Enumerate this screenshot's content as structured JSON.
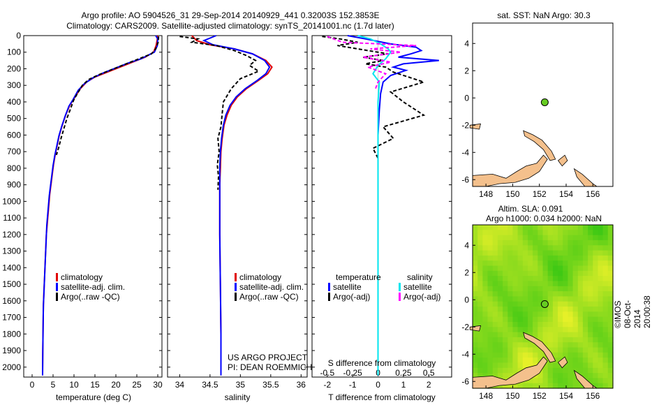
{
  "header": {
    "title_line1": "Argo profile: AO 5904526_31 29-Sep-2014 20140929_441 0.32003S 152.3853E",
    "title_line2": "Climatology: CARS2009. Satellite-adjusted climatology: synTS_20141001.nc (1.7d later)"
  },
  "colors": {
    "climatology": "#e00000",
    "satellite": "#0000ff",
    "argo": "#000000",
    "sal_satellite": "#00e5ee",
    "sal_argo": "#ff00ff",
    "land": "#f4c08c",
    "float": "#66cc22"
  },
  "legend": {
    "climatology": "climatology",
    "satellite_adj": "satellite-adj. clim.",
    "argo_raw": "Argo(..raw -QC)",
    "temperature_header": "temperature",
    "salinity_header": "salinity",
    "satellite": "satellite",
    "argo_adj": "Argo(-adj)"
  },
  "project": {
    "line1": "US ARGO PROJECT",
    "line2": "PI: DEAN ROEMMICH"
  },
  "map_top": {
    "title": "sat. SST: NaN Argo: 30.3"
  },
  "map_bottom": {
    "title_line1": "Altim. SLA: 0.091",
    "title_line2": "Argo h1000: 0.034 h2000: NaN"
  },
  "footer": {
    "stamp": "©IMOS 08-Oct-2014 20:00:38"
  },
  "chart_data": [
    {
      "type": "line",
      "id": "temp",
      "xlabel": "temperature (deg C)",
      "ylabel": "",
      "xlim": [
        -2,
        31
      ],
      "ylim": [
        2060,
        0
      ],
      "xticks": [
        0,
        5,
        10,
        15,
        20,
        25,
        30
      ],
      "yticks": [
        0,
        100,
        200,
        300,
        400,
        500,
        600,
        700,
        800,
        900,
        1000,
        1100,
        1200,
        1300,
        1400,
        1500,
        1600,
        1700,
        1800,
        1900,
        2000
      ],
      "series": [
        {
          "name": "climatology",
          "color": "#e00000",
          "x": [
            30,
            29.9,
            29.6,
            29,
            27,
            24,
            21,
            18,
            15,
            13,
            11.5,
            10,
            9,
            8,
            7.2,
            6.5,
            6,
            5.5,
            5.1,
            4.8,
            4.5,
            4.2,
            4,
            3.8,
            3.6,
            3.4,
            3.3,
            3.2,
            3.1,
            3,
            2.9,
            2.8,
            2.7,
            2.65,
            2.6,
            2.55,
            2.5
          ],
          "y": [
            0,
            20,
            60,
            100,
            130,
            160,
            190,
            220,
            250,
            280,
            320,
            380,
            420,
            480,
            540,
            600,
            660,
            720,
            780,
            840,
            900,
            960,
            1020,
            1080,
            1140,
            1200,
            1260,
            1320,
            1380,
            1440,
            1500,
            1560,
            1620,
            1700,
            1800,
            1900,
            2050
          ]
        },
        {
          "name": "satellite-adj. clim.",
          "color": "#0000ff",
          "x": [
            29.5,
            30,
            29.9,
            29.2,
            26,
            23,
            20,
            17,
            14.5,
            12.5,
            11,
            9.8,
            8.8,
            7.9,
            7.1,
            6.4,
            5.9,
            5.4,
            5,
            4.7,
            4.4,
            4.1,
            3.9,
            3.7,
            3.5,
            3.4,
            3.3,
            3.2,
            3.1,
            3,
            2.9,
            2.8,
            2.7,
            2.65,
            2.6,
            2.55,
            2.5
          ],
          "y": [
            0,
            20,
            60,
            100,
            140,
            165,
            195,
            225,
            255,
            290,
            330,
            385,
            425,
            485,
            545,
            605,
            665,
            725,
            785,
            845,
            905,
            965,
            1025,
            1085,
            1145,
            1205,
            1265,
            1325,
            1385,
            1445,
            1505,
            1565,
            1625,
            1705,
            1805,
            1905,
            2050
          ]
        },
        {
          "name": "Argo(..raw -QC)",
          "color": "#000000",
          "dashed": true,
          "x": [
            30.2,
            30.1,
            29.5,
            28.5,
            25,
            22,
            19,
            16,
            13.5,
            12,
            10.8,
            9.9,
            9.2,
            8.3,
            7.6,
            6.9,
            6.3,
            5.8
          ],
          "y": [
            5,
            40,
            80,
            110,
            145,
            175,
            205,
            235,
            265,
            300,
            350,
            390,
            440,
            500,
            560,
            620,
            680,
            720
          ]
        }
      ]
    },
    {
      "type": "line",
      "id": "sal",
      "xlabel": "salinity",
      "ylabel": "",
      "xlim": [
        33.8,
        36.1
      ],
      "ylim": [
        2060,
        0
      ],
      "xticks": [
        34,
        34.5,
        35,
        35.5,
        36
      ],
      "xtick_labels": [
        "34",
        "34.5",
        "35",
        "35.5",
        "36"
      ],
      "series": [
        {
          "name": "climatology",
          "color": "#e00000",
          "x": [
            34.2,
            34.28,
            34.5,
            34.9,
            35.2,
            35.42,
            35.52,
            35.45,
            35.3,
            35.1,
            34.95,
            34.85,
            34.78,
            34.73,
            34.7,
            34.68,
            34.67,
            34.66,
            34.66,
            34.66,
            34.67,
            34.68,
            34.68
          ],
          "y": [
            0,
            30,
            55,
            80,
            110,
            150,
            190,
            230,
            270,
            320,
            370,
            420,
            480,
            540,
            620,
            700,
            800,
            900,
            1000,
            1200,
            1500,
            1800,
            2050
          ]
        },
        {
          "name": "satellite-adj. clim.",
          "color": "#0000ff",
          "x": [
            34.6,
            34.4,
            34.55,
            34.9,
            35.2,
            35.4,
            35.48,
            35.42,
            35.28,
            35.08,
            34.93,
            34.83,
            34.76,
            34.72,
            34.69,
            34.67,
            34.66,
            34.66,
            34.66,
            34.66,
            34.67,
            34.68,
            34.68
          ],
          "y": [
            0,
            30,
            55,
            80,
            110,
            150,
            190,
            230,
            270,
            320,
            370,
            420,
            480,
            540,
            620,
            700,
            800,
            900,
            1000,
            1200,
            1500,
            1800,
            2050
          ]
        },
        {
          "name": "Argo(..raw -QC)",
          "color": "#000000",
          "dashed": true,
          "x": [
            34.0,
            34.3,
            34.2,
            34.6,
            34.9,
            35.1,
            35.25,
            35.15,
            35.3,
            35.0,
            34.85,
            34.72,
            34.7,
            34.68,
            34.63,
            34.65,
            34.62,
            34.64,
            34.63
          ],
          "y": [
            5,
            20,
            40,
            60,
            90,
            120,
            150,
            180,
            215,
            260,
            320,
            400,
            470,
            550,
            620,
            700,
            780,
            850,
            930
          ]
        }
      ]
    },
    {
      "type": "line",
      "id": "diff",
      "xlabel": "T difference from climatology",
      "xlabel_top": "S difference from climatology",
      "xlim": [
        -2.6,
        2.9
      ],
      "ylim": [
        2060,
        0
      ],
      "xticks": [
        -2,
        -1,
        0,
        1,
        2
      ],
      "xticks_top": [
        -0.5,
        -0.25,
        0,
        0.25,
        0.5
      ],
      "xticks_top_labels": [
        "-0.5",
        "-0.25",
        "0",
        "0.25",
        "0.5"
      ],
      "series": [
        {
          "name": "temperature satellite",
          "color": "#0000ff",
          "x": [
            -1.2,
            -0.5,
            0.5,
            1.5,
            1.7,
            1.3,
            0.8,
            2.4,
            1.0,
            0.6,
            1.1,
            0.5,
            0.2,
            0.1,
            0.05,
            0.0,
            0.0,
            0.0,
            0.0
          ],
          "y": [
            0,
            20,
            50,
            70,
            90,
            110,
            130,
            150,
            170,
            190,
            210,
            240,
            280,
            350,
            450,
            600,
            900,
            1400,
            2050
          ]
        },
        {
          "name": "temperature Argo(-adj)",
          "color": "#000000",
          "dashed": true,
          "x": [
            -2.2,
            -1.5,
            -0.8,
            -1.6,
            -0.4,
            0.4,
            -0.6,
            0.2,
            -0.5,
            0.3,
            0.6,
            1.8,
            0.5,
            1.0,
            1.8,
            0.2,
            0.6,
            -0.2,
            0.0
          ],
          "y": [
            5,
            20,
            40,
            60,
            90,
            110,
            130,
            150,
            170,
            190,
            220,
            280,
            340,
            400,
            480,
            550,
            620,
            680,
            740
          ]
        },
        {
          "name": "salinity satellite",
          "color": "#00e5ee",
          "x": [
            -0.8,
            -0.3,
            0.1,
            0.4,
            0.5,
            0.3,
            0.0,
            -0.2,
            0.05,
            0.0,
            0.0,
            0.0,
            0.0
          ],
          "y": [
            0,
            20,
            50,
            80,
            100,
            140,
            180,
            230,
            280,
            400,
            800,
            1400,
            2050
          ]
        },
        {
          "name": "salinity Argo(-adj)",
          "color": "#ff00ff",
          "dashed": true,
          "x": [
            -2.0,
            -1.4,
            1.5,
            -0.3,
            0.9,
            -0.6,
            0.5,
            -0.4,
            0.3,
            0.0,
            -0.1
          ],
          "y": [
            5,
            40,
            60,
            80,
            100,
            130,
            160,
            190,
            230,
            280,
            320
          ]
        }
      ]
    },
    {
      "type": "scatter",
      "id": "map_sst",
      "xlim": [
        147,
        157.5
      ],
      "ylim": [
        -6.5,
        5.5
      ],
      "xticks": [
        148,
        150,
        152,
        154,
        156
      ],
      "yticks": [
        -6,
        -4,
        -2,
        0,
        2,
        4
      ],
      "points": [
        {
          "x": 152.4,
          "y": -0.32
        }
      ]
    },
    {
      "type": "heatmap",
      "id": "map_sla",
      "xlim": [
        147,
        157.5
      ],
      "ylim": [
        -6.5,
        5.5
      ],
      "xticks": [
        148,
        150,
        152,
        154,
        156
      ],
      "yticks": [
        -6,
        -4,
        -2,
        0,
        2,
        4
      ],
      "points": [
        {
          "x": 152.4,
          "y": -0.32
        }
      ]
    }
  ]
}
